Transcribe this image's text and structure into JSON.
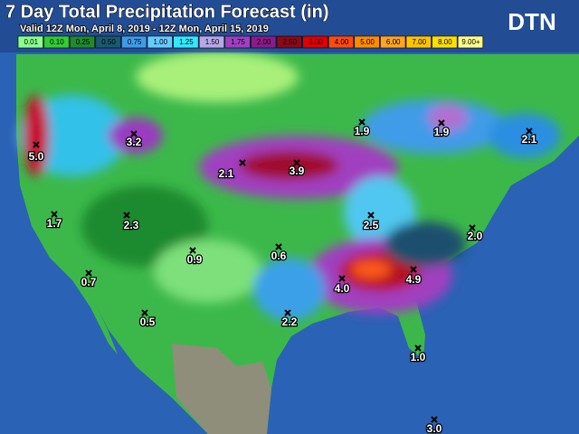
{
  "header": {
    "title": "7 Day Total Precipitation Forecast (in)",
    "subtitle": "Valid 12Z Mon, April 8, 2019 - 12Z Mon, April 15, 2019",
    "logo": "DTN"
  },
  "legend": [
    "0.01",
    "0.10",
    "0.25",
    "0.50",
    "0.75",
    "1.00",
    "1.25",
    "1.50",
    "1.75",
    "2.00",
    "2.50",
    "3.00",
    "4.00",
    "5.00",
    "6.00",
    "7.00",
    "8.00",
    "9.00+"
  ],
  "points": [
    "5.0",
    "3.2",
    "2.1",
    "3.9",
    "1.9",
    "1.9",
    "2.1",
    "1.7",
    "2.3",
    "0.9",
    "0.6",
    "2.5",
    "2.0",
    "0.7",
    "4.0",
    "4.9",
    "0.5",
    "2.2",
    "1.0",
    "3.0"
  ]
}
